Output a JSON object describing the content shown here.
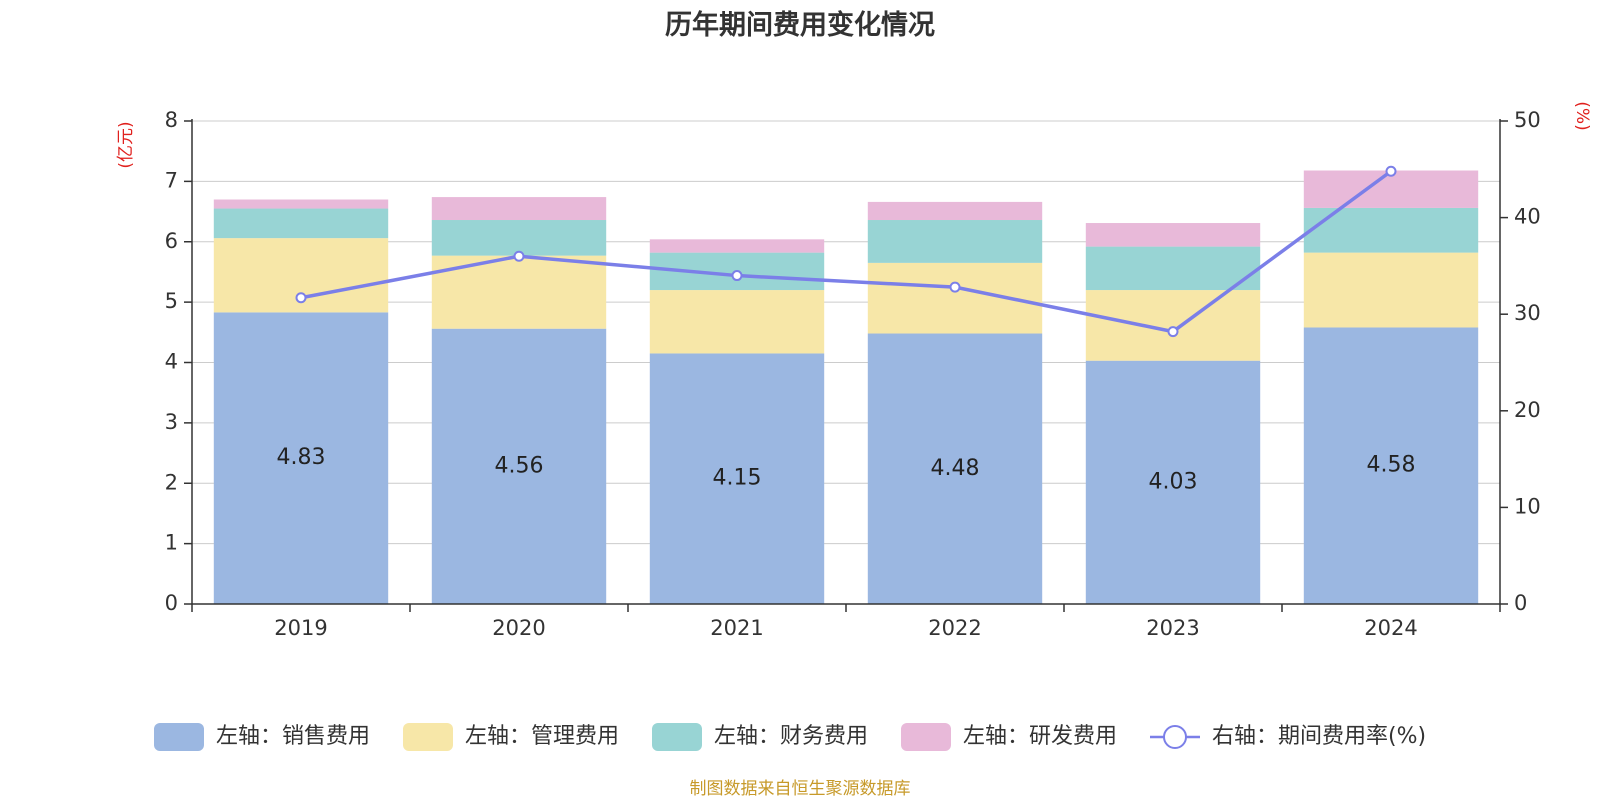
{
  "chart_data": {
    "type": "bar",
    "stacked": true,
    "title": "历年期间费用变化情况",
    "source_note": "制图数据来自恒生聚源数据库",
    "left_axis_unit": "(亿元)",
    "right_axis_unit": "(%)",
    "categories": [
      "2019",
      "2020",
      "2021",
      "2022",
      "2023",
      "2024"
    ],
    "ylim_left": [
      0,
      8
    ],
    "yticks_left": [
      0,
      1,
      2,
      3,
      4,
      5,
      6,
      7,
      8
    ],
    "ylim_right": [
      0,
      50
    ],
    "yticks_right": [
      0,
      10,
      20,
      30,
      40,
      50
    ],
    "grid": true,
    "legend_position": "bottom",
    "series": [
      {
        "name": "左轴：销售费用",
        "axis": "left",
        "type": "bar",
        "color": "#9bb7e1",
        "values": [
          4.83,
          4.56,
          4.15,
          4.48,
          4.03,
          4.58
        ],
        "show_labels": true
      },
      {
        "name": "左轴：管理费用",
        "axis": "left",
        "type": "bar",
        "color": "#f7e7a8",
        "values": [
          1.23,
          1.21,
          1.05,
          1.17,
          1.17,
          1.24
        ],
        "show_labels": false
      },
      {
        "name": "左轴：财务费用",
        "axis": "left",
        "type": "bar",
        "color": "#98d4d4",
        "values": [
          0.49,
          0.59,
          0.62,
          0.71,
          0.72,
          0.74
        ],
        "show_labels": false
      },
      {
        "name": "左轴：研发费用",
        "axis": "left",
        "type": "bar",
        "color": "#e8b9d9",
        "values": [
          0.15,
          0.38,
          0.22,
          0.3,
          0.39,
          0.62
        ],
        "show_labels": false
      },
      {
        "name": "右轴：期间费用率(%)",
        "axis": "right",
        "type": "line",
        "color": "#7b7fe8",
        "values": [
          31.7,
          36.0,
          34.0,
          32.8,
          28.2,
          44.8
        ]
      }
    ]
  }
}
